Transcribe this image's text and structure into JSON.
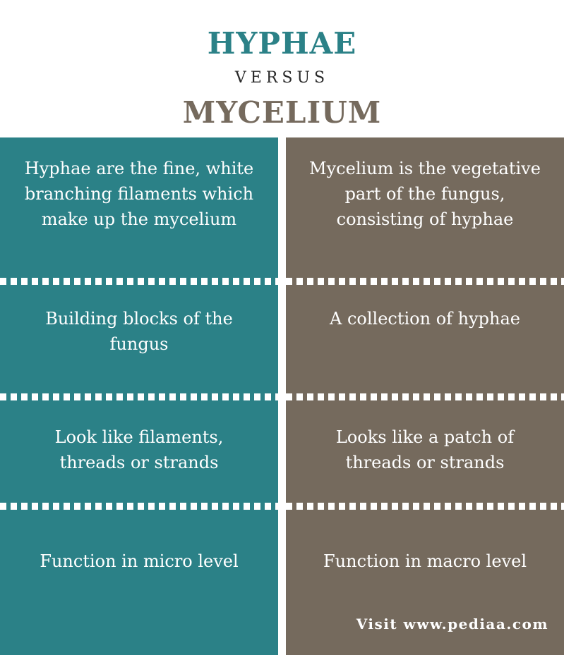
{
  "header": {
    "title_left": "HYPHAE",
    "versus": "VERSUS",
    "title_right": "MYCELIUM"
  },
  "colors": {
    "left_column": "#2b8187",
    "right_column": "#756a5d",
    "versus_text": "#2a2a2a",
    "separator": "#ffffff"
  },
  "rows": [
    {
      "left": "Hyphae are the fine, white branching filaments which make up the mycelium",
      "right": "Mycelium is the vegetative part of the fungus, consisting of hyphae"
    },
    {
      "left": "Building blocks of the fungus",
      "right": "A collection of hyphae"
    },
    {
      "left": "Look like filaments, threads or strands",
      "right": "Looks like a patch of threads or strands"
    },
    {
      "left": "Function in micro level",
      "right": "Function in macro level"
    }
  ],
  "watermark": "Visit www.pediaa.com"
}
